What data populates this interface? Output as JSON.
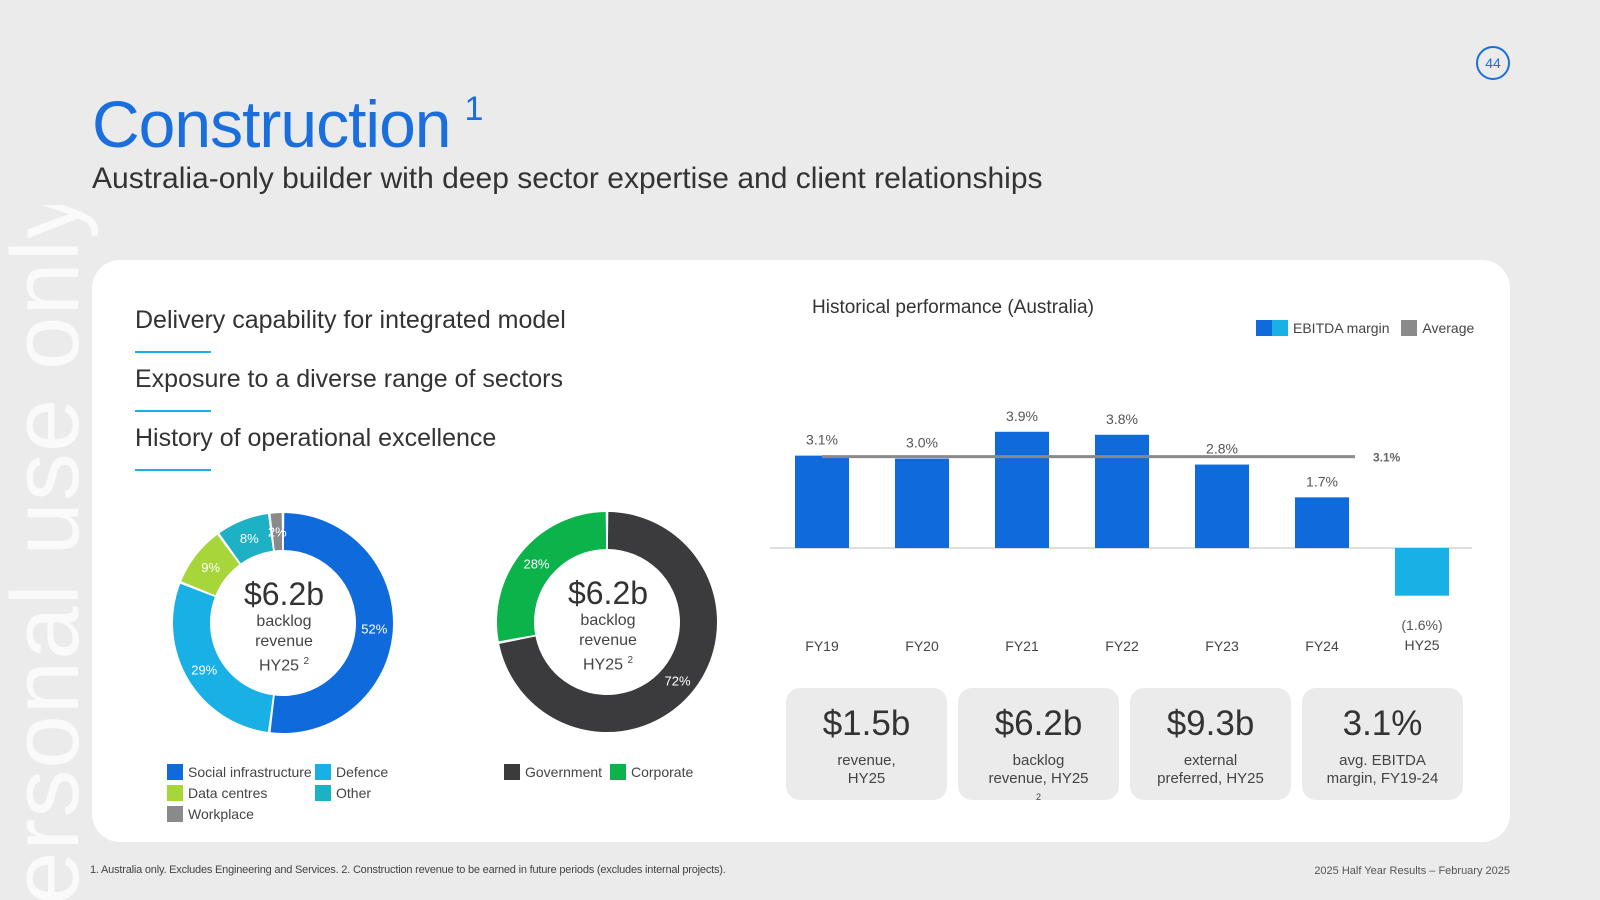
{
  "watermark": "ersonal use only",
  "page_number": "44",
  "header": {
    "title": "Construction",
    "title_sup": "1",
    "subtitle": "Australia-only builder with deep sector expertise and client relationships"
  },
  "points": [
    "Delivery capability for integrated model",
    "Exposure to a diverse range of sectors",
    "History of operational excellence"
  ],
  "donuts": {
    "center": {
      "value": "$6.2b",
      "line1": "backlog",
      "line2": "revenue",
      "line3": "HY25",
      "sup": "2"
    },
    "sector": {
      "segments": [
        {
          "name": "Social infrastructure",
          "value": 52,
          "label": "52%",
          "color": "#0f6bdc"
        },
        {
          "name": "Defence",
          "value": 29,
          "label": "29%",
          "color": "#19b0e6"
        },
        {
          "name": "Data centres",
          "value": 9,
          "label": "9%",
          "color": "#a6d63a"
        },
        {
          "name": "Other",
          "value": 8,
          "label": "8%",
          "color": "#1eb0c4"
        },
        {
          "name": "Workplace",
          "value": 2,
          "label": "2%",
          "color": "#8a8a8a"
        }
      ]
    },
    "client": {
      "segments": [
        {
          "name": "Government",
          "value": 72,
          "label": "72%",
          "color": "#3b3b3d"
        },
        {
          "name": "Corporate",
          "value": 28,
          "label": "28%",
          "color": "#0bb34a"
        }
      ]
    }
  },
  "chart_data": {
    "type": "bar",
    "title": "Historical performance (Australia)",
    "categories": [
      "FY19",
      "FY20",
      "FY21",
      "FY22",
      "FY23",
      "FY24",
      "HY25"
    ],
    "series": [
      {
        "name": "EBITDA margin",
        "values": [
          3.1,
          3.0,
          3.9,
          3.8,
          2.8,
          1.7,
          -1.6
        ],
        "labels": [
          "3.1%",
          "3.0%",
          "3.9%",
          "3.8%",
          "2.8%",
          "1.7%",
          "(1.6%)"
        ]
      }
    ],
    "average": {
      "name": "Average",
      "value": 3.1,
      "label": "3.1%",
      "span": [
        "FY19",
        "FY24"
      ]
    },
    "colors": {
      "positive": "#0f6bdc",
      "negative": "#19b0e6",
      "average": "#8a8a8a"
    },
    "legend_position": "top-right",
    "ylim": [
      -1.6,
      3.9
    ]
  },
  "kpis": [
    {
      "value": "$1.5b",
      "line1": "revenue,",
      "line2": "HY25",
      "sup": ""
    },
    {
      "value": "$6.2b",
      "line1": "backlog",
      "line2": "revenue, HY25",
      "sup": "2"
    },
    {
      "value": "$9.3b",
      "line1": "external",
      "line2": "preferred, HY25",
      "sup": ""
    },
    {
      "value": "3.1%",
      "line1": "avg. EBITDA",
      "line2": "margin, FY19-24",
      "sup": ""
    }
  ],
  "footnote": "1. Australia only. Excludes Engineering and Services.  2. Construction revenue to be earned in future periods (excludes internal projects).",
  "footer_right": "2025 Half Year Results – February 2025"
}
